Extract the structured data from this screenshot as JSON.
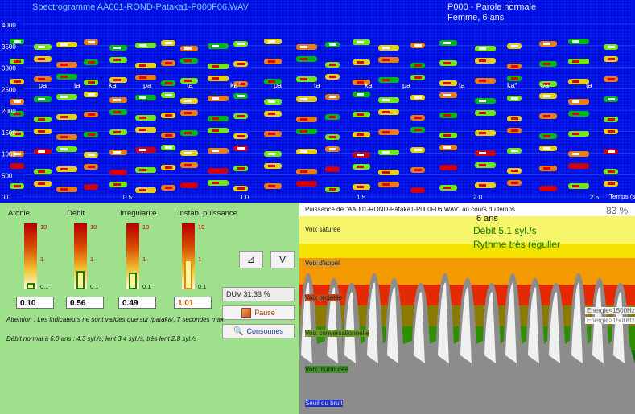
{
  "spectrogram": {
    "title": "Spectrogramme AA001-ROND-Pataka1-P000F06.WAV",
    "info_line1": "P000 - Parole normale",
    "info_line2": "Femme, 6 ans",
    "y_ticks": [
      "4000",
      "3500",
      "3000",
      "2500",
      "2000",
      "1500",
      "1000",
      "500",
      "0.0"
    ],
    "x_ticks": [
      "0.5",
      "1.0",
      "1.5",
      "2.0",
      "2.5"
    ],
    "x_axis_label": "Temps (s",
    "syllables": [
      "pa",
      "ta",
      "ka",
      "pa",
      "ta",
      "ka*",
      "pa",
      "ta",
      "ka",
      "pa",
      "ta",
      "ka*",
      "pa",
      "ta"
    ]
  },
  "indicators": [
    {
      "title": "Atonie",
      "value": "0.10",
      "level": 0.04
    },
    {
      "title": "Débit",
      "value": "0.56",
      "level": 0.28
    },
    {
      "title": "Irrégularité",
      "value": "0.49",
      "level": 0.26
    },
    {
      "title": "Instab. puissance",
      "value": "1.01",
      "level": 0.45
    }
  ],
  "gauge_ticks": {
    "top": "10",
    "mid": "1",
    "bottom": "0.1"
  },
  "buttons": {
    "shape_a": "⊿",
    "shape_b": "V",
    "duv": "DUV 31.33 %",
    "pause": "Pause",
    "consonnes": "Consonnes"
  },
  "notes": {
    "attention": "Attention : Les indicateurs ne sont valides que sur /pataka/, 7 secondes max",
    "debit_normal": "Débit normal à 6.0 ans : 4.3 syl./s, lent 3.4 syl./s, très lent 2.8 syl./s"
  },
  "power_panel": {
    "title": "Puissance de \"AA001-ROND-Pataka1-P000F06.WAV\" au cours du temps",
    "age": "6 ans",
    "percent": "83 %",
    "debit": "Débit 5.1 syl./s",
    "rythme": "Rythme très régulier",
    "bands": [
      "Voix saturée",
      "Voix d'appel",
      "Voix projetée",
      "Voix conversationnelle",
      "Voix murmurée",
      "Seuil du bruit"
    ],
    "legend_low": "Energie<1500Hz",
    "legend_high": "Energie>1500Hz"
  },
  "colors": {
    "spectro_bg": "#0010e0",
    "panel_green": "#9fe08c",
    "band_yellow_top": "#f7f56a",
    "band_yellow": "#f4e200",
    "band_orange": "#f39a00",
    "band_red": "#e42a00",
    "band_olive": "#8a7a00",
    "band_green": "#2f8f00",
    "band_dark_green": "#0b6e00",
    "band_gray": "#bdbdbd",
    "waveform_gray": "#8c8c8c",
    "waveform_light": "#f0f0f0"
  }
}
